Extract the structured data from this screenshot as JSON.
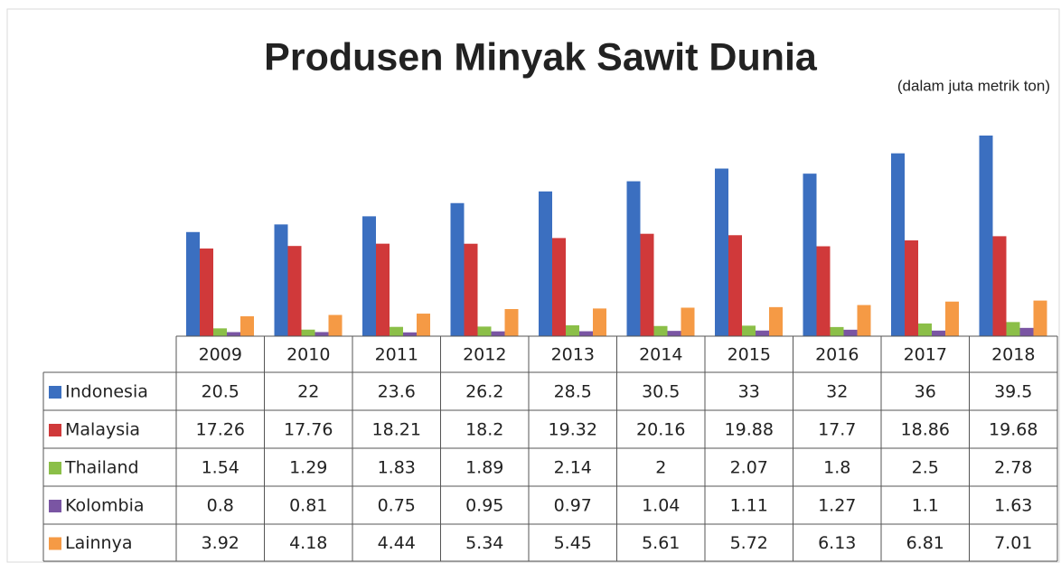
{
  "chart_data": {
    "type": "bar",
    "title": "Produsen Minyak Sawit Dunia",
    "subtitle": "(dalam juta metrik ton)",
    "categories": [
      "2009",
      "2010",
      "2011",
      "2012",
      "2013",
      "2014",
      "2015",
      "2016",
      "2017",
      "2018"
    ],
    "series": [
      {
        "name": "Indonesia",
        "color": "#3b6fc0",
        "values": [
          20.5,
          22,
          23.6,
          26.2,
          28.5,
          30.5,
          33,
          32,
          36,
          39.5
        ]
      },
      {
        "name": "Malaysia",
        "color": "#d0393a",
        "values": [
          17.26,
          17.76,
          18.21,
          18.2,
          19.32,
          20.16,
          19.88,
          17.7,
          18.86,
          19.68
        ]
      },
      {
        "name": "Thailand",
        "color": "#8bbf48",
        "values": [
          1.54,
          1.29,
          1.83,
          1.89,
          2.14,
          2,
          2.07,
          1.8,
          2.5,
          2.78
        ]
      },
      {
        "name": "Kolombia",
        "color": "#7a55a3",
        "values": [
          0.8,
          0.81,
          0.75,
          0.95,
          0.97,
          1.04,
          1.11,
          1.27,
          1.1,
          1.63
        ]
      },
      {
        "name": "Lainnya",
        "color": "#f59a45",
        "values": [
          3.92,
          4.18,
          4.44,
          5.34,
          5.45,
          5.61,
          5.72,
          6.13,
          6.81,
          7.01
        ]
      }
    ]
  }
}
